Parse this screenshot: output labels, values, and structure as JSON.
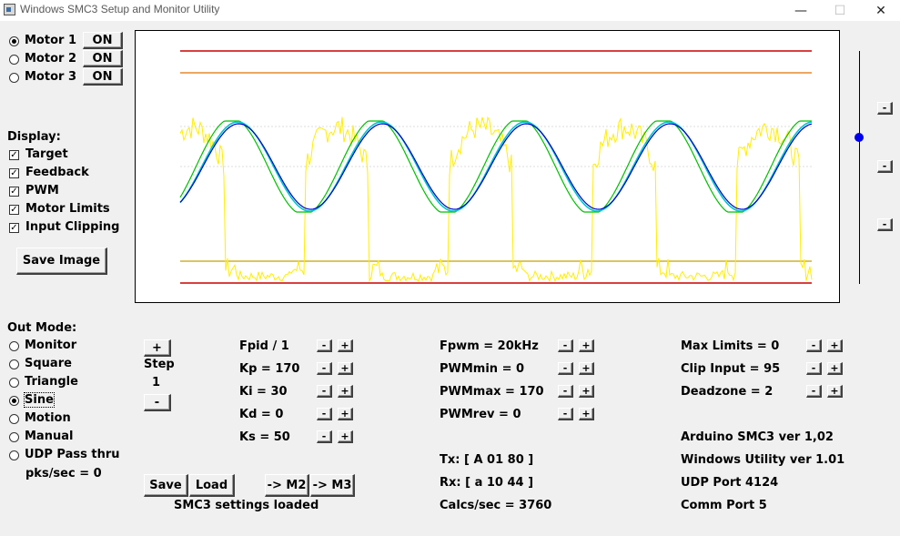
{
  "window": {
    "title": "Windows SMC3 Setup and Monitor Utility",
    "minimize": "—",
    "maximize": "☐",
    "close": "✕"
  },
  "motors": [
    {
      "label": "Motor 1",
      "selected": true,
      "button": "ON"
    },
    {
      "label": "Motor 2",
      "selected": false,
      "button": "ON"
    },
    {
      "label": "Motor 3",
      "selected": false,
      "button": "ON"
    }
  ],
  "display": {
    "heading": "Display:",
    "options": [
      {
        "label": "Target",
        "checked": true
      },
      {
        "label": "Feedback",
        "checked": true
      },
      {
        "label": "PWM",
        "checked": true
      },
      {
        "label": "Motor Limits",
        "checked": true
      },
      {
        "label": "Input Clipping",
        "checked": true
      }
    ],
    "save_image": "Save Image"
  },
  "out_mode": {
    "heading": "Out Mode:",
    "options": [
      {
        "label": "Monitor",
        "selected": false
      },
      {
        "label": "Square",
        "selected": false
      },
      {
        "label": "Triangle",
        "selected": false
      },
      {
        "label": "Sine",
        "selected": true
      },
      {
        "label": "Motion",
        "selected": false
      },
      {
        "label": "Manual",
        "selected": false
      },
      {
        "label": "UDP Pass thru",
        "selected": false
      }
    ],
    "pks": "pks/sec = 0"
  },
  "step": {
    "plus": "+",
    "label": "Step",
    "value": "1",
    "minus": "-"
  },
  "pid_params": [
    {
      "label": "Fpid / 1"
    },
    {
      "label": "Kp = 170"
    },
    {
      "label": "Ki = 30"
    },
    {
      "label": "Kd = 0"
    },
    {
      "label": "Ks = 50"
    }
  ],
  "pwm_params": [
    {
      "label": "Fpwm = 20kHz"
    },
    {
      "label": "PWMmin = 0"
    },
    {
      "label": "PWMmax = 170"
    },
    {
      "label": "PWMrev = 0"
    }
  ],
  "limit_params": [
    {
      "label": "Max Limits = 0"
    },
    {
      "label": "Clip Input = 95"
    },
    {
      "label": "Deadzone = 2"
    }
  ],
  "comm": {
    "tx": "Tx: [ A 01 80 ]",
    "rx": "Rx: [ a 10 44 ]",
    "calcs": "Calcs/sec = 3760"
  },
  "info": {
    "arduino": "Arduino SMC3 ver 1,02",
    "utility": "Windows Utility ver 1.01",
    "udp": "UDP Port 4124",
    "comm_port": "Comm Port 5"
  },
  "buttons": {
    "save": "Save",
    "load": "Load",
    "to_m2": "-> M2",
    "to_m3": "-> M3",
    "minus": "-",
    "plus": "+"
  },
  "status": "SMC3 settings loaded",
  "slider": {
    "value_fraction": 0.63,
    "buttons": [
      "-",
      "-",
      "-"
    ]
  },
  "trace_colors": {
    "target": "#00c000",
    "feedback": "#0000cc",
    "overlay": "#00c8c8",
    "pwm": "#ffee00",
    "limit_outer": "#cc0000",
    "limit_inner": "#e07000",
    "clip": "#c8a000"
  }
}
